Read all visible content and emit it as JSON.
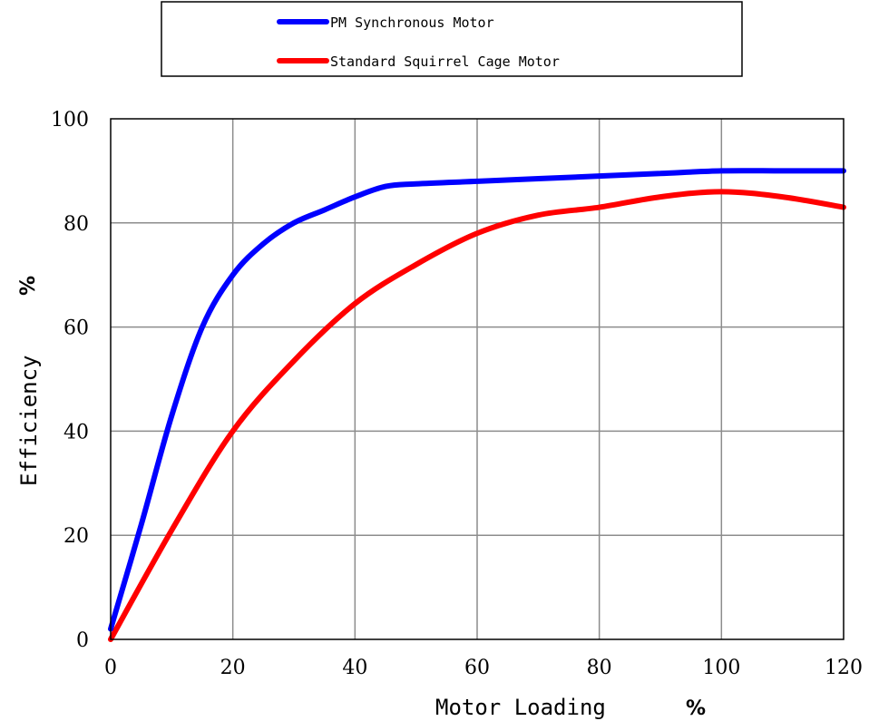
{
  "chart_data": {
    "type": "line",
    "xlabel": "Motor Loading",
    "xlabel_unit": "%",
    "ylabel": "Efficiency",
    "ylabel_unit": "%",
    "xlim": [
      0,
      120
    ],
    "ylim": [
      0,
      100
    ],
    "x_ticks": [
      "0",
      "20",
      "40",
      "60",
      "80",
      "100",
      "120"
    ],
    "y_ticks": [
      "0",
      "20",
      "40",
      "60",
      "80",
      "100"
    ],
    "grid": true,
    "legend_position": "top-center",
    "series": [
      {
        "name": "PM Synchronous Motor",
        "color": "#0000ff",
        "x": [
          0,
          5,
          10,
          15,
          20,
          25,
          30,
          35,
          40,
          45,
          50,
          60,
          70,
          80,
          90,
          100,
          110,
          120
        ],
        "y": [
          2,
          22,
          43,
          60,
          70,
          76,
          80,
          82.5,
          85,
          87,
          87.5,
          88,
          88.5,
          89,
          89.5,
          90,
          90,
          90
        ]
      },
      {
        "name": "Standard Squirrel Cage Motor",
        "color": "#ff0000",
        "x": [
          0,
          10,
          20,
          30,
          40,
          50,
          60,
          70,
          80,
          90,
          100,
          110,
          120
        ],
        "y": [
          0,
          21,
          40,
          53.5,
          64.5,
          72,
          78,
          81.5,
          83,
          85,
          86,
          85,
          83
        ]
      }
    ]
  }
}
